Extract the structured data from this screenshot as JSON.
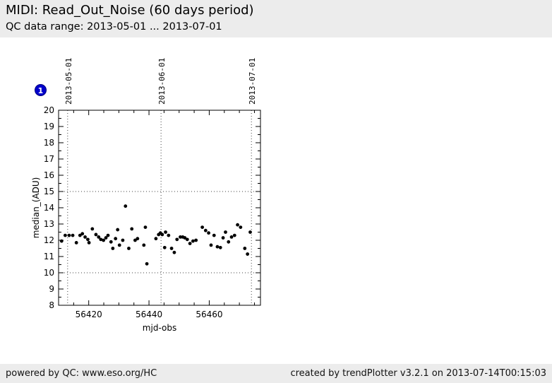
{
  "header": {
    "title": "MIDI: Read_Out_Noise (60 days period)",
    "subtitle": "QC data range: 2013-05-01 ... 2013-07-01"
  },
  "badge": {
    "label": "1",
    "color": "#0000cc"
  },
  "footer": {
    "left": "powered by QC: www.eso.org/HC",
    "right": "created by trendPlotter v3.2.1 on 2013-07-14T00:15:03"
  },
  "chart_data": {
    "type": "scatter",
    "xlabel": "mjd-obs",
    "ylabel": "median_(ADU)",
    "xlim": [
      56410,
      56477
    ],
    "ylim": [
      8,
      20
    ],
    "x_major_ticks": [
      56420,
      56440,
      56460
    ],
    "x_minor_step": 5,
    "y_major_step": 1,
    "y_minor_step": 0.5,
    "grid": "dotted reference lines only",
    "h_dotted_lines": [
      10,
      15
    ],
    "v_dotted_lines": [
      {
        "mjd": 56413,
        "label": "2013-05-01"
      },
      {
        "mjd": 56444,
        "label": "2013-06-01"
      },
      {
        "mjd": 56474,
        "label": "2013-07-01"
      }
    ],
    "marker": {
      "shape": "circle",
      "color": "#000000",
      "radius_px": 2.4
    },
    "points": [
      [
        56411.0,
        11.95
      ],
      [
        56412.2,
        12.3
      ],
      [
        56413.5,
        12.3
      ],
      [
        56414.7,
        12.3
      ],
      [
        56415.9,
        11.85
      ],
      [
        56417.1,
        12.3
      ],
      [
        56417.9,
        12.4
      ],
      [
        56418.8,
        12.2
      ],
      [
        56419.7,
        12.05
      ],
      [
        56420.1,
        11.85
      ],
      [
        56421.2,
        12.7
      ],
      [
        56422.4,
        12.35
      ],
      [
        56423.3,
        12.2
      ],
      [
        56424.0,
        12.05
      ],
      [
        56424.9,
        12.0
      ],
      [
        56425.7,
        12.15
      ],
      [
        56426.4,
        12.3
      ],
      [
        56427.4,
        11.9
      ],
      [
        56428.0,
        11.5
      ],
      [
        56428.9,
        12.1
      ],
      [
        56429.6,
        12.65
      ],
      [
        56430.2,
        11.7
      ],
      [
        56431.3,
        12.0
      ],
      [
        56432.2,
        14.1
      ],
      [
        56433.3,
        11.5
      ],
      [
        56434.3,
        12.7
      ],
      [
        56435.4,
        12.0
      ],
      [
        56436.2,
        12.1
      ],
      [
        56438.3,
        11.7
      ],
      [
        56438.8,
        12.8
      ],
      [
        56439.3,
        10.55
      ],
      [
        56442.3,
        12.1
      ],
      [
        56443.2,
        12.35
      ],
      [
        56443.8,
        12.45
      ],
      [
        56444.4,
        12.35
      ],
      [
        56445.2,
        11.55
      ],
      [
        56445.5,
        12.5
      ],
      [
        56446.5,
        12.3
      ],
      [
        56447.5,
        11.5
      ],
      [
        56448.4,
        11.25
      ],
      [
        56449.3,
        12.05
      ],
      [
        56450.4,
        12.2
      ],
      [
        56451.2,
        12.2
      ],
      [
        56451.9,
        12.15
      ],
      [
        56452.7,
        12.05
      ],
      [
        56453.6,
        11.8
      ],
      [
        56454.6,
        11.95
      ],
      [
        56455.6,
        12.0
      ],
      [
        56457.7,
        12.8
      ],
      [
        56458.8,
        12.6
      ],
      [
        56459.8,
        12.45
      ],
      [
        56460.6,
        11.7
      ],
      [
        56461.6,
        12.3
      ],
      [
        56462.7,
        11.6
      ],
      [
        56463.7,
        11.55
      ],
      [
        56464.6,
        12.15
      ],
      [
        56465.4,
        12.5
      ],
      [
        56466.4,
        11.9
      ],
      [
        56467.4,
        12.2
      ],
      [
        56468.4,
        12.3
      ],
      [
        56469.4,
        12.95
      ],
      [
        56470.4,
        12.8
      ],
      [
        56471.8,
        11.5
      ],
      [
        56472.7,
        11.15
      ],
      [
        56473.6,
        12.5
      ]
    ]
  }
}
